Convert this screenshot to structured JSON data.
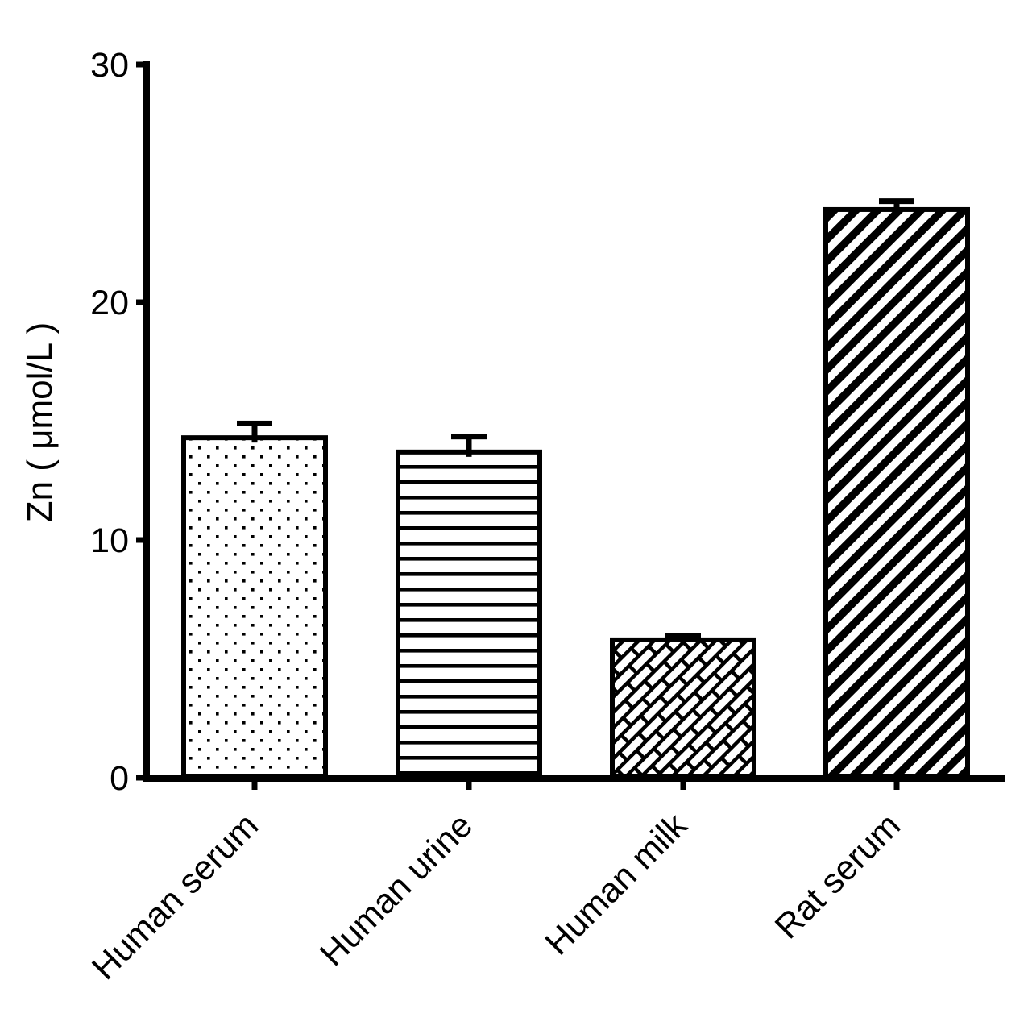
{
  "chart_data": {
    "type": "bar",
    "title": "",
    "categories": [
      "Human serum",
      "Human urine",
      "Human milk",
      "Rat serum"
    ],
    "values": [
      14.3,
      13.7,
      5.8,
      23.9
    ],
    "errors": [
      0.6,
      0.65,
      0.15,
      0.35
    ],
    "error_bar_style": "upper-only with T-cap",
    "ylabel": "Zn ( μmol/L )",
    "xlabel": "",
    "ylim": [
      0,
      30
    ],
    "yticks": [
      0,
      10,
      20,
      30
    ],
    "xtick_label_rotation_deg": -45,
    "bar_fill_patterns": [
      "dots",
      "horizontal-lines",
      "diagonal-bricks",
      "diagonal-stripes"
    ],
    "bar_outline_color": "#000000",
    "error_bar_color": "#000000",
    "axis_color": "#000000",
    "background_color": "#ffffff",
    "grid": false,
    "legend": "none"
  }
}
